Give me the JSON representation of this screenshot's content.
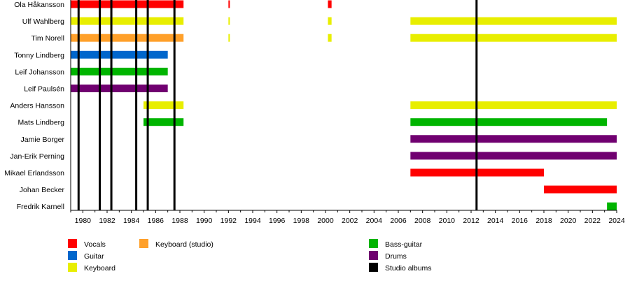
{
  "chart_data": {
    "type": "timeline",
    "xlim": [
      1979,
      2024
    ],
    "x_ticks": [
      1980,
      1982,
      1984,
      1986,
      1988,
      1990,
      1992,
      1994,
      1996,
      1998,
      2000,
      2002,
      2004,
      2006,
      2008,
      2010,
      2012,
      2014,
      2016,
      2018,
      2020,
      2022,
      2024
    ],
    "grid": false,
    "legend_placement": "bottom",
    "roles": {
      "vocals": {
        "label": "Vocals",
        "color": "#ff0000"
      },
      "guitar": {
        "label": "Guitar",
        "color": "#0066cc"
      },
      "keyboard": {
        "label": "Keyboard",
        "color": "#e8ee00"
      },
      "keyboard_studio": {
        "label": "Keyboard (studio)",
        "color": "#ffa02a"
      },
      "bass": {
        "label": "Bass-guitar",
        "color": "#00b400"
      },
      "drums": {
        "label": "Drums",
        "color": "#700070"
      },
      "albums": {
        "label": "Studio albums",
        "color": "#000000"
      }
    },
    "legend_order": [
      [
        "vocals",
        "guitar",
        "keyboard"
      ],
      [
        "keyboard_studio"
      ],
      [
        "bass",
        "drums",
        "albums"
      ]
    ],
    "members": [
      {
        "name": "Ola Håkansson",
        "periods": [
          {
            "role": "vocals",
            "start": 1979,
            "end": 1988.3
          },
          {
            "role": "vocals",
            "start": 1992.0,
            "end": 1992.1
          },
          {
            "role": "vocals",
            "start": 2000.2,
            "end": 2000.5
          }
        ]
      },
      {
        "name": "Ulf Wahlberg",
        "periods": [
          {
            "role": "keyboard",
            "start": 1979,
            "end": 1988.3
          },
          {
            "role": "keyboard",
            "start": 1992.0,
            "end": 1992.1
          },
          {
            "role": "keyboard",
            "start": 2000.2,
            "end": 2000.5
          },
          {
            "role": "keyboard",
            "start": 2007,
            "end": 2024
          }
        ]
      },
      {
        "name": "Tim Norell",
        "periods": [
          {
            "role": "keyboard_studio",
            "start": 1979,
            "end": 1988.3
          },
          {
            "role": "keyboard",
            "start": 1992.0,
            "end": 1992.1
          },
          {
            "role": "keyboard",
            "start": 2000.2,
            "end": 2000.5
          },
          {
            "role": "keyboard",
            "start": 2007,
            "end": 2024
          }
        ]
      },
      {
        "name": "Tonny Lindberg",
        "periods": [
          {
            "role": "guitar",
            "start": 1979,
            "end": 1987
          }
        ]
      },
      {
        "name": "Leif Johansson",
        "periods": [
          {
            "role": "bass",
            "start": 1979,
            "end": 1987
          }
        ]
      },
      {
        "name": "Leif Paulsén",
        "periods": [
          {
            "role": "drums",
            "start": 1979,
            "end": 1987
          }
        ]
      },
      {
        "name": "Anders Hansson",
        "periods": [
          {
            "role": "keyboard",
            "start": 1985,
            "end": 1988.3
          },
          {
            "role": "keyboard",
            "start": 2007,
            "end": 2024
          }
        ]
      },
      {
        "name": "Mats Lindberg",
        "periods": [
          {
            "role": "bass",
            "start": 1985,
            "end": 1988.3
          },
          {
            "role": "bass",
            "start": 2007,
            "end": 2023.2
          }
        ]
      },
      {
        "name": "Jamie Borger",
        "periods": [
          {
            "role": "drums",
            "start": 2007,
            "end": 2024
          }
        ]
      },
      {
        "name": "Jan-Erik Perning",
        "periods": [
          {
            "role": "drums",
            "start": 2007,
            "end": 2024
          }
        ]
      },
      {
        "name": "Mikael Erlandsson",
        "periods": [
          {
            "role": "vocals",
            "start": 2007,
            "end": 2018
          }
        ]
      },
      {
        "name": "Johan Becker",
        "periods": [
          {
            "role": "vocals",
            "start": 2018,
            "end": 2024
          }
        ]
      },
      {
        "name": "Fredrik Karnell",
        "periods": [
          {
            "role": "bass",
            "start": 2023.2,
            "end": 2024
          }
        ]
      }
    ],
    "studio_albums": [
      1979.65,
      1981.4,
      1982.35,
      1984.4,
      1985.35,
      1987.55,
      2012.45
    ]
  }
}
